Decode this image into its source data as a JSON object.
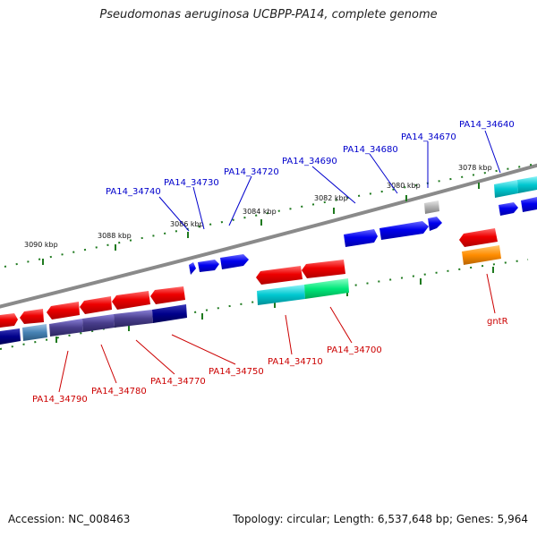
{
  "title": "Pseudomonas aeruginosa UCBPP-PA14, complete genome",
  "footer": {
    "accession": "Accession: NC_008463",
    "summary": "Topology: circular; Length: 6,537,648 bp; Genes: 5,964"
  },
  "colors": {
    "backbone": "#8a8a8a",
    "tick_dot": "#1f7a1f",
    "top_label": "#0000cc",
    "bottom_label": "#cc0000",
    "cds_blue": "#0000ee",
    "cds_red": "#ee0000",
    "gene_grey": "#b0b0b0",
    "gene_orange": "#ff8c00",
    "gene_cyan": "#00c8d0",
    "gene_green": "#00e87a",
    "gene_navy": "#00008b",
    "gene_slate": "#4682b4",
    "gene_purple": "#483d8b"
  },
  "scale_labels": [
    "3090 kbp",
    "3088 kbp",
    "3086 kbp",
    "3084 kbp",
    "3082 kbp",
    "3080 kbp",
    "3078 kbp"
  ],
  "top_gene_labels": [
    "PA14_34740",
    "PA14_34730",
    "PA14_34720",
    "PA14_34690",
    "PA14_34680",
    "PA14_34670",
    "PA14_34640"
  ],
  "bottom_gene_labels": [
    "PA14_34790",
    "PA14_34780",
    "PA14_34770",
    "PA14_34750",
    "PA14_34710",
    "PA14_34700",
    "gntR"
  ]
}
